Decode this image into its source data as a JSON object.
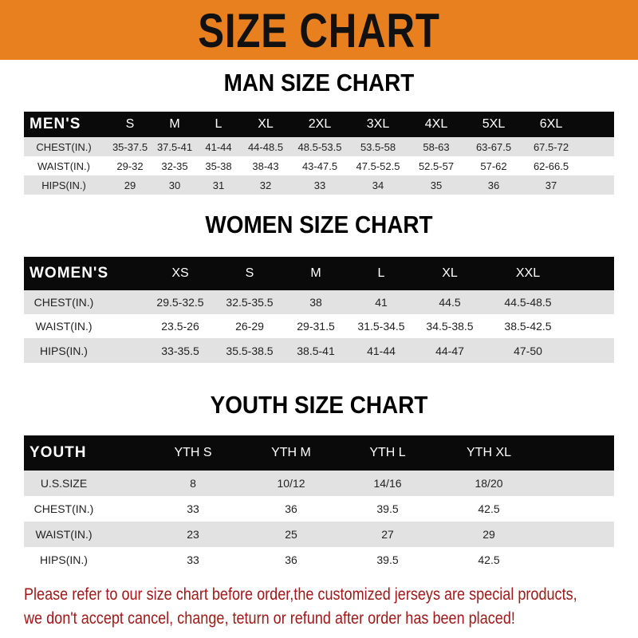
{
  "title": "SIZE CHART",
  "colors": {
    "banner": "#e8801f",
    "header_row": "#0a0a0a",
    "notice_text": "#a01818"
  },
  "tables": [
    {
      "title": "MAN SIZE CHART",
      "header": [
        "MEN'S",
        "S",
        "M",
        "L",
        "XL",
        "2XL",
        "3XL",
        "4XL",
        "5XL",
        "6XL"
      ],
      "rows": [
        [
          "CHEST(IN.)",
          "35-37.5",
          "37.5-41",
          "41-44",
          "44-48.5",
          "48.5-53.5",
          "53.5-58",
          "58-63",
          "63-67.5",
          "67.5-72"
        ],
        [
          "WAIST(IN.)",
          "29-32",
          "32-35",
          "35-38",
          "38-43",
          "43-47.5",
          "47.5-52.5",
          "52.5-57",
          "57-62",
          "62-66.5"
        ],
        [
          "HIPS(IN.)",
          "29",
          "30",
          "31",
          "32",
          "33",
          "34",
          "35",
          "36",
          "37"
        ]
      ]
    },
    {
      "title": "WOMEN SIZE CHART",
      "header": [
        "WOMEN'S",
        "XS",
        "S",
        "M",
        "L",
        "XL",
        "XXL"
      ],
      "rows": [
        [
          "CHEST(IN.)",
          "29.5-32.5",
          "32.5-35.5",
          "38",
          "41",
          "44.5",
          "44.5-48.5"
        ],
        [
          "WAIST(IN.)",
          "23.5-26",
          "26-29",
          "29-31.5",
          "31.5-34.5",
          "34.5-38.5",
          "38.5-42.5"
        ],
        [
          "HIPS(IN.)",
          "33-35.5",
          "35.5-38.5",
          "38.5-41",
          "41-44",
          "44-47",
          "47-50"
        ]
      ]
    },
    {
      "title": "YOUTH SIZE CHART",
      "header": [
        "YOUTH",
        "YTH S",
        "YTH M",
        "YTH L",
        "YTH XL"
      ],
      "rows": [
        [
          "U.S.SIZE",
          "8",
          "10/12",
          "14/16",
          "18/20"
        ],
        [
          "CHEST(IN.)",
          "33",
          "36",
          "39.5",
          "42.5"
        ],
        [
          "WAIST(IN.)",
          "23",
          "25",
          "27",
          "29"
        ],
        [
          "HIPS(IN.)",
          "33",
          "36",
          "39.5",
          "42.5"
        ]
      ]
    }
  ],
  "notice": [
    "Please refer to our size chart before order,the customized jerseys are special products,",
    "we don't accept cancel, change, teturn or refund after order has been placed!"
  ]
}
